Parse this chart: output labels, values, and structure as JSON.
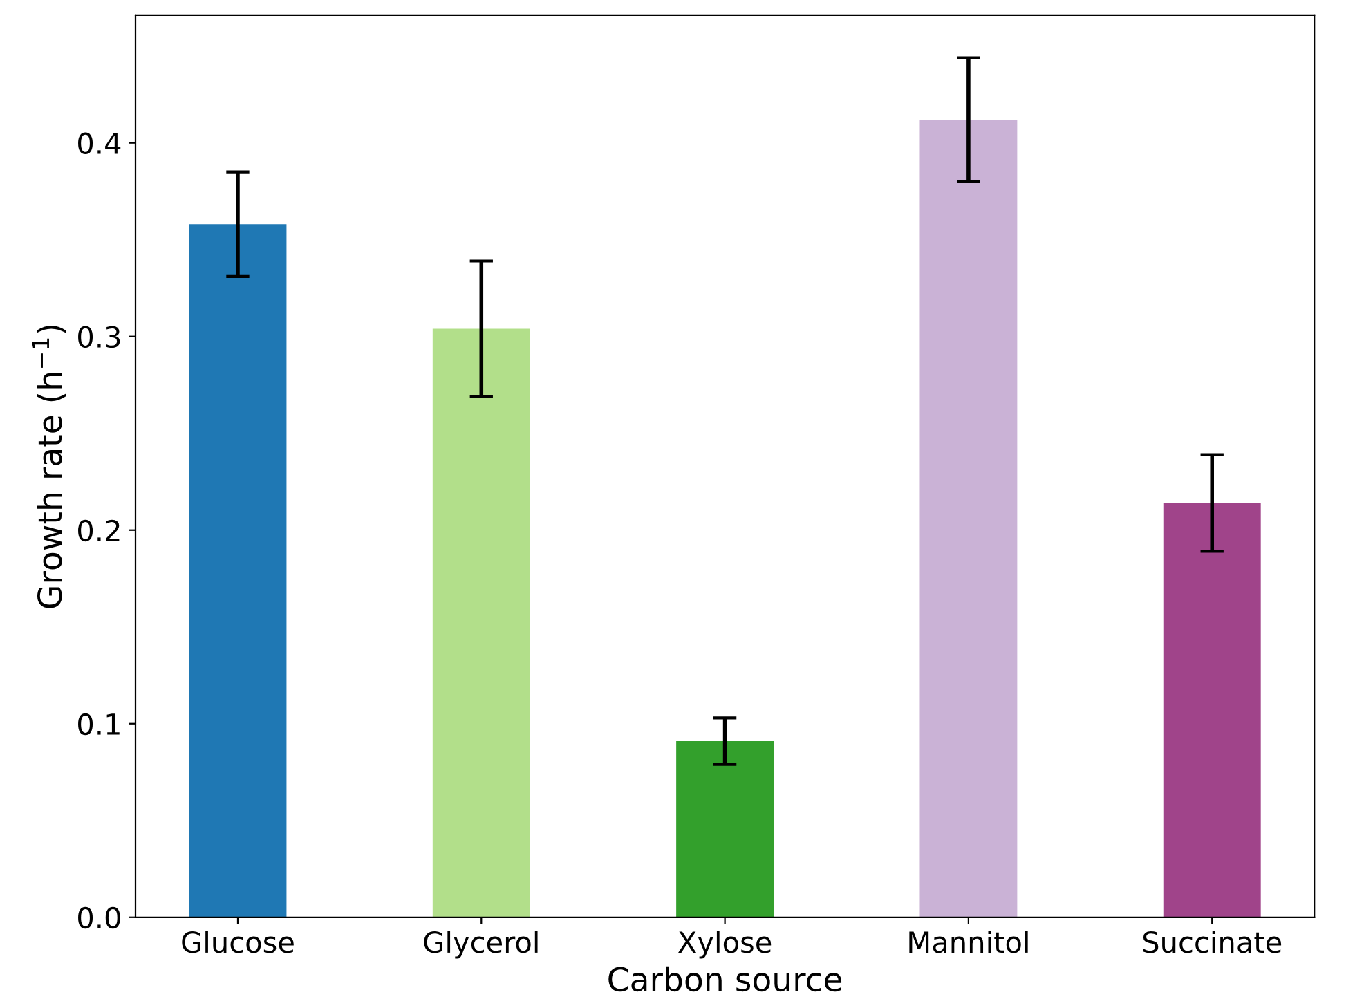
{
  "chart_data": {
    "type": "bar",
    "xlabel": "Carbon source",
    "ylabel": "Growth rate (h$^{−1}$)",
    "categories": [
      "Glucose",
      "Glycerol",
      "Xylose",
      "Mannitol",
      "Succinate"
    ],
    "values": [
      0.358,
      0.304,
      0.091,
      0.412,
      0.214
    ],
    "errors": [
      0.027,
      0.035,
      0.012,
      0.032,
      0.025
    ],
    "colors": [
      "#1f78b4",
      "#b2df8a",
      "#33a02c",
      "#cab2d6",
      "#a0448a"
    ],
    "ylim": [
      0,
      0.466
    ],
    "yticks": [
      {
        "value": 0,
        "label": "0.0"
      },
      0.1,
      0.2,
      0.3,
      0.4
    ],
    "grid": false,
    "legend": false
  }
}
